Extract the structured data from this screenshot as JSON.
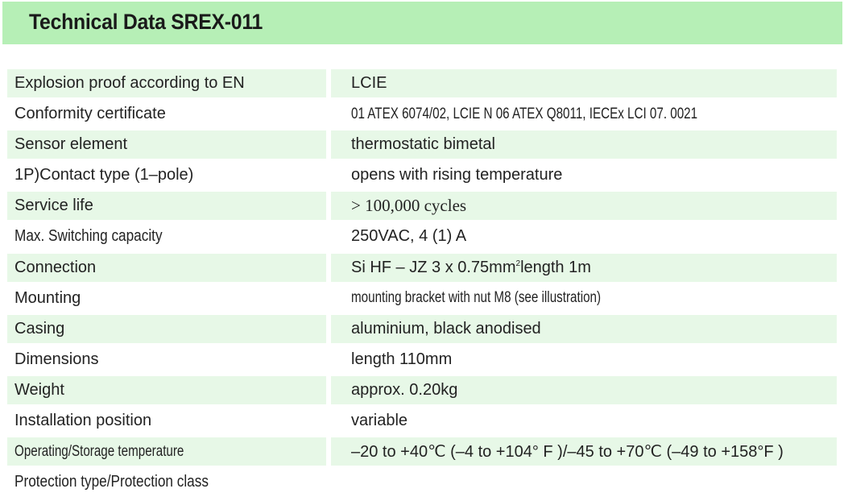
{
  "header": {
    "title": "Technical Data SREX-011",
    "background_color": "#b6efb6"
  },
  "row_shade_color": "#e7f8e7",
  "rows": [
    {
      "label": "Explosion proof according to EN",
      "value": "LCIE",
      "shaded": true
    },
    {
      "label": "Conformity certificate",
      "value": "01 ATEX 6074/02, LCIE N   06 ATEX Q8011, IECEx LCI 07. 0021",
      "shaded": false
    },
    {
      "label": "Sensor element",
      "value": "thermostatic bimetal",
      "shaded": true
    },
    {
      "label": "1P)Contact type (1–pole)",
      "value": "opens with rising temperature",
      "shaded": false
    },
    {
      "label": "Service life",
      "value": "> 100,000 cycles",
      "shaded": true
    },
    {
      "label": "Max. Switching capacity",
      "value": "250VAC, 4 (1) A",
      "shaded": false
    },
    {
      "label": "Connection",
      "value_prefix": "Si HF – JZ 3 x 0.75mm",
      "value_sup": "2",
      "value_suffix": "length  1m",
      "shaded": true
    },
    {
      "label": "Mounting",
      "value": "mounting bracket with nut M8 (see illustration)",
      "shaded": false
    },
    {
      "label": "Casing",
      "value": "aluminium, black anodised",
      "shaded": true
    },
    {
      "label": "Dimensions",
      "value": "length 110mm",
      "shaded": false
    },
    {
      "label": "Weight",
      "value": "approx. 0.20kg",
      "shaded": true
    },
    {
      "label": "Installation position",
      "value": "variable",
      "shaded": false
    },
    {
      "label": "Operating/Storage temperature",
      "value": "–20 to +40℃ (–4 to +104° F )/–45 to +70℃ (–49 to +158°F )",
      "shaded": true
    },
    {
      "label": "Protection type/Protection class",
      "value": "",
      "shaded": false
    }
  ]
}
